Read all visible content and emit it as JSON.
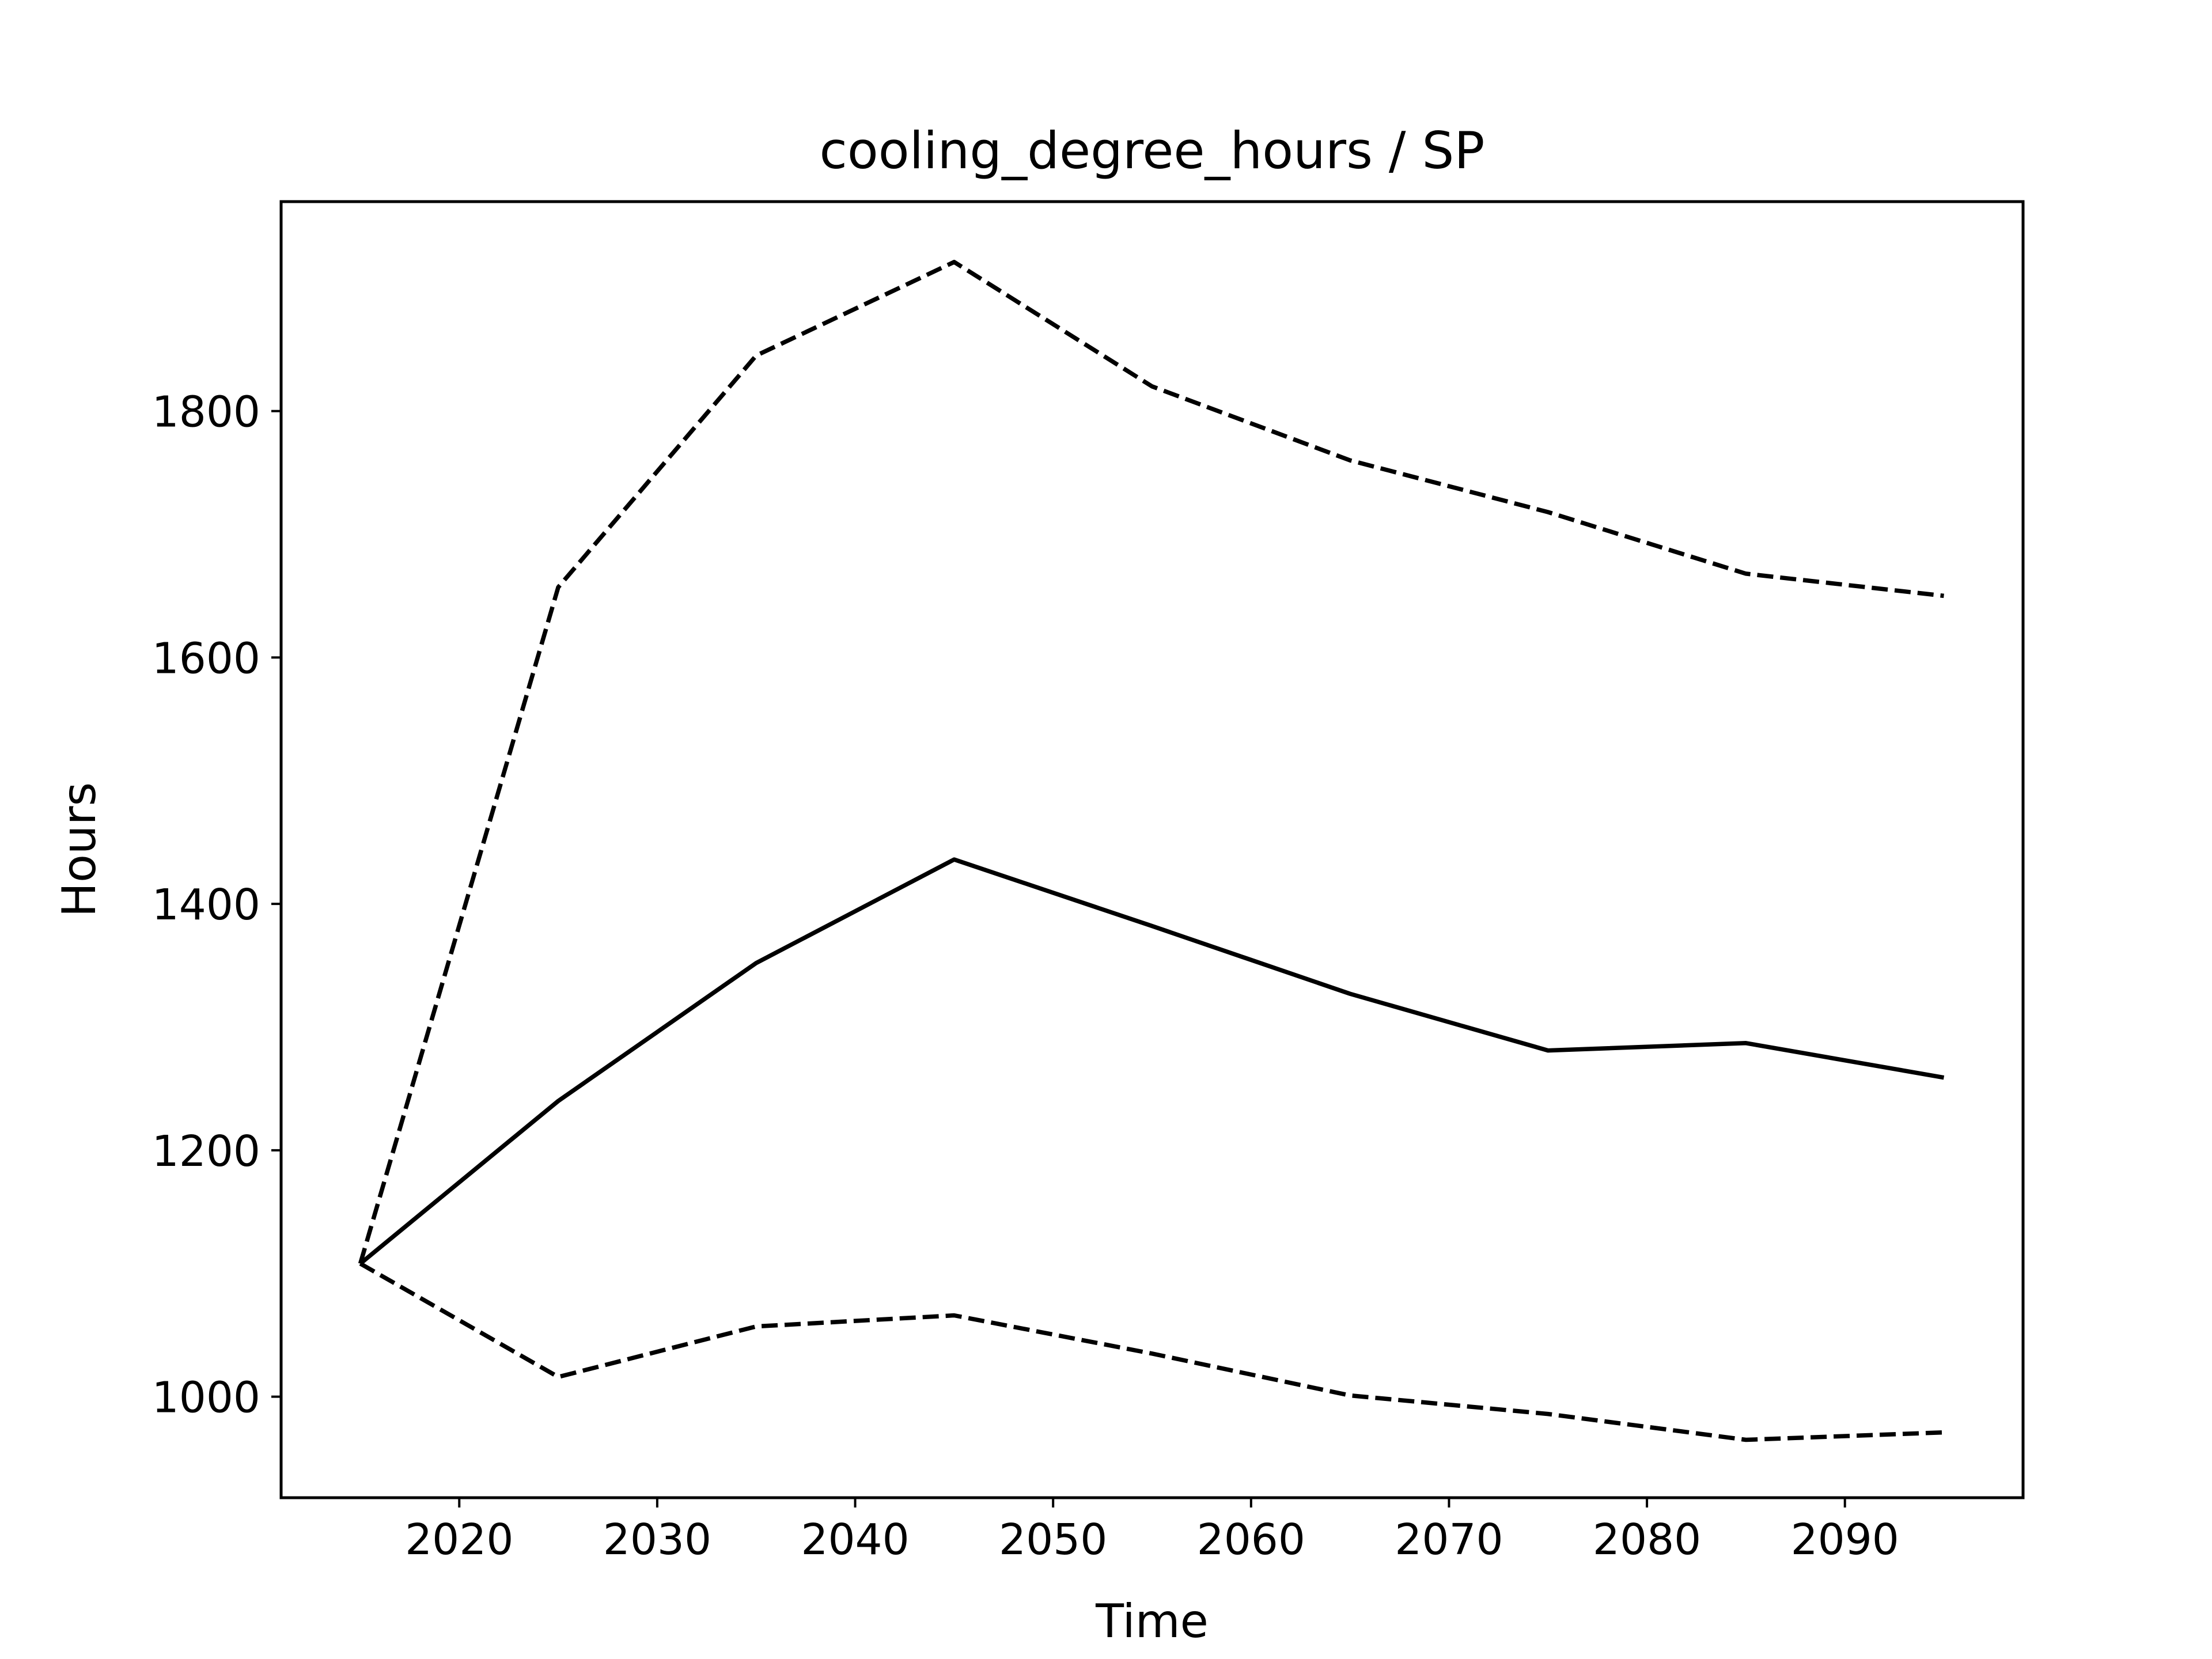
{
  "chart_data": {
    "type": "line",
    "title": "cooling_degree_hours / SP",
    "xlabel": "Time",
    "ylabel": "Hours",
    "xlim": [
      2011,
      2099
    ],
    "ylim": [
      918,
      1970
    ],
    "xticks": [
      2020,
      2030,
      2040,
      2050,
      2060,
      2070,
      2080,
      2090
    ],
    "yticks": [
      1000,
      1200,
      1400,
      1600,
      1800
    ],
    "x": [
      2015,
      2025,
      2035,
      2045,
      2055,
      2065,
      2075,
      2085,
      2095
    ],
    "grid": false,
    "legend": "none",
    "series": [
      {
        "style": "solid",
        "color": "#000000",
        "values": [
          1108,
          1240,
          1352,
          1436,
          1382,
          1327,
          1281,
          1287,
          1259
        ]
      },
      {
        "style": "dashed",
        "color": "#000000",
        "values": [
          1108,
          1657,
          1845,
          1921,
          1820,
          1760,
          1718,
          1668,
          1650
        ]
      },
      {
        "style": "dashed",
        "color": "#000000",
        "values": [
          1108,
          1016,
          1057,
          1066,
          1035,
          1001,
          986,
          965,
          971
        ]
      }
    ]
  }
}
